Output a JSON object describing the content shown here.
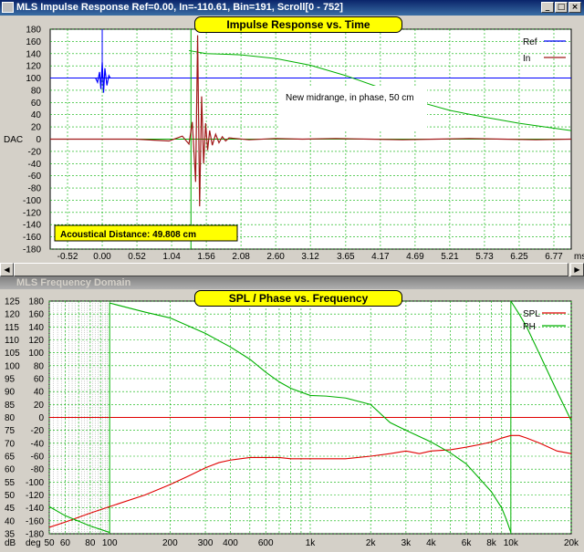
{
  "top_window": {
    "title": "MLS Impulse Response  Ref=0.00, In=-110.61, Bin=191, Scroll[0 - 752]",
    "plot_title": "Impulse Response vs. Time",
    "distance_label": "Acoustical Distance: 49.808 cm",
    "annotation": "New midrange, in phase, 50 cm"
  },
  "bottom_window": {
    "title": "MLS Frequency Domain",
    "plot_title": "SPL / Phase vs. Frequency"
  },
  "colors": {
    "ref": "#0000ff",
    "in": "#a01818",
    "green": "#00b000",
    "grid": "#00b000",
    "plot_bg": "#ffffff",
    "label_bg": "#ffff00",
    "spl": "#e00000"
  },
  "chart_data": [
    {
      "type": "line",
      "title": "Impulse Response vs. Time",
      "ylabel": "DAC",
      "xlabel": "ms",
      "x_ticks": [
        "-0.52",
        "0.00",
        "0.52",
        "1.04",
        "1.56",
        "2.08",
        "2.60",
        "3.12",
        "3.65",
        "4.17",
        "4.69",
        "5.21",
        "5.73",
        "6.25",
        "6.77"
      ],
      "y_ticks": [
        "180",
        "160",
        "140",
        "120",
        "100",
        "80",
        "60",
        "40",
        "20",
        "0",
        "-20",
        "-40",
        "-60",
        "-80",
        "-100",
        "-120",
        "-140",
        "-160",
        "-180"
      ],
      "xlim": [
        -0.78,
        7.03
      ],
      "ylim": [
        -180,
        180
      ],
      "grid": true,
      "legend": "top-right",
      "series": [
        {
          "name": "Ref",
          "color": "#0000ff",
          "x": [
            -0.1,
            -0.07,
            -0.04,
            -0.02,
            0.0,
            0.02,
            0.04,
            0.07,
            0.1,
            0.12
          ],
          "y": [
            100,
            93,
            110,
            82,
            126,
            76,
            116,
            88,
            104,
            100
          ]
        },
        {
          "name": "In",
          "color": "#a01818",
          "x": [
            -0.78,
            0.5,
            1.0,
            1.2,
            1.3,
            1.35,
            1.4,
            1.43,
            1.46,
            1.49,
            1.52,
            1.55,
            1.58,
            1.61,
            1.65,
            1.7,
            1.75,
            1.8,
            1.85,
            1.9,
            2.0,
            2.2,
            2.6,
            3.0,
            3.5,
            4.0,
            4.5,
            5.0,
            5.5,
            6.0,
            6.5,
            7.03
          ],
          "y": [
            0,
            0,
            -3,
            5,
            -8,
            28,
            -70,
            170,
            -110,
            70,
            -40,
            26,
            -18,
            14,
            -10,
            8,
            -6,
            4,
            -3,
            2,
            1,
            -1,
            1,
            0,
            1,
            0,
            -1,
            0,
            1,
            0,
            -1,
            0
          ]
        }
      ],
      "annotations": [
        {
          "text": "Acoustical Distance: 49.808 cm"
        },
        {
          "text": "New midrange, in phase, 50 cm"
        }
      ],
      "extra_curve": {
        "color": "#00b000",
        "x": [
          1.3,
          1.56,
          2.08,
          2.6,
          3.12,
          3.65,
          4.17,
          4.69,
          5.21,
          5.73,
          6.25,
          6.77,
          7.03
        ],
        "y": [
          145,
          140,
          138,
          132,
          121,
          104,
          84,
          63,
          47,
          36,
          26,
          18,
          14
        ]
      },
      "marker_x": 1.33
    },
    {
      "type": "line",
      "title": "SPL / Phase vs. Frequency",
      "x_ticks": [
        "50",
        "60",
        "80",
        "100",
        "200",
        "300",
        "400",
        "600",
        "1k",
        "2k",
        "3k",
        "4k",
        "6k",
        "8k",
        "10k",
        "20k"
      ],
      "y_ticks_left": [
        "125",
        "120",
        "115",
        "110",
        "105",
        "100",
        "95",
        "90",
        "85",
        "80",
        "75",
        "70",
        "65",
        "60",
        "55",
        "50",
        "45",
        "40",
        "35"
      ],
      "y_ticks_right": [
        "180",
        "160",
        "140",
        "120",
        "100",
        "80",
        "60",
        "40",
        "20",
        "0",
        "-20",
        "-40",
        "-60",
        "-80",
        "-100",
        "-120",
        "-140",
        "-160",
        "-180"
      ],
      "left_unit": "dB",
      "right_unit": "deg",
      "xlim": [
        50,
        20000
      ],
      "log_x": true,
      "ylim_left": [
        35,
        125
      ],
      "ylim_right": [
        -180,
        180
      ],
      "grid": true,
      "legend": "top-right",
      "series": [
        {
          "name": "SPL",
          "color": "#e00000",
          "axis": "left",
          "x": [
            50,
            60,
            80,
            100,
            150,
            200,
            250,
            300,
            350,
            400,
            500,
            600,
            700,
            800,
            1000,
            1500,
            2000,
            2500,
            3000,
            3500,
            4000,
            5000,
            6000,
            7000,
            8000,
            9000,
            10000,
            11000,
            12000,
            14000,
            17000,
            20000
          ],
          "y": [
            37.5,
            39.5,
            43,
            45.5,
            50,
            54,
            57.5,
            60.5,
            62.5,
            63.5,
            64.5,
            64.5,
            64.5,
            64,
            64,
            64,
            65,
            66,
            67,
            66,
            67,
            67.5,
            68.5,
            69.5,
            70.5,
            72,
            73,
            73,
            72,
            70,
            67,
            66
          ]
        },
        {
          "name": "PH",
          "color": "#00b000",
          "axis": "right",
          "x": [
            100,
            150,
            200,
            300,
            400,
            500,
            600,
            700,
            800,
            1000,
            1200,
            1500,
            2000,
            2500,
            3000,
            4000,
            5000,
            6000,
            7000,
            8000,
            9000,
            9500,
            10000
          ],
          "y": [
            177,
            163,
            154,
            130,
            109,
            90,
            70,
            55,
            45,
            34,
            33,
            30,
            20,
            -8,
            -20,
            -38,
            -55,
            -72,
            -95,
            -115,
            -140,
            -158,
            -178
          ]
        },
        {
          "name": "",
          "color": "#00b000",
          "axis": "right",
          "x": [
            10000,
            11000,
            12000,
            14000,
            17000,
            20000
          ],
          "y": [
            180,
            160,
            140,
            96,
            40,
            -5
          ]
        },
        {
          "name": "",
          "color": "#00b000",
          "axis": "right",
          "x": [
            50,
            60,
            80,
            100
          ],
          "y": [
            -138,
            -152,
            -168,
            -178
          ]
        }
      ]
    }
  ]
}
